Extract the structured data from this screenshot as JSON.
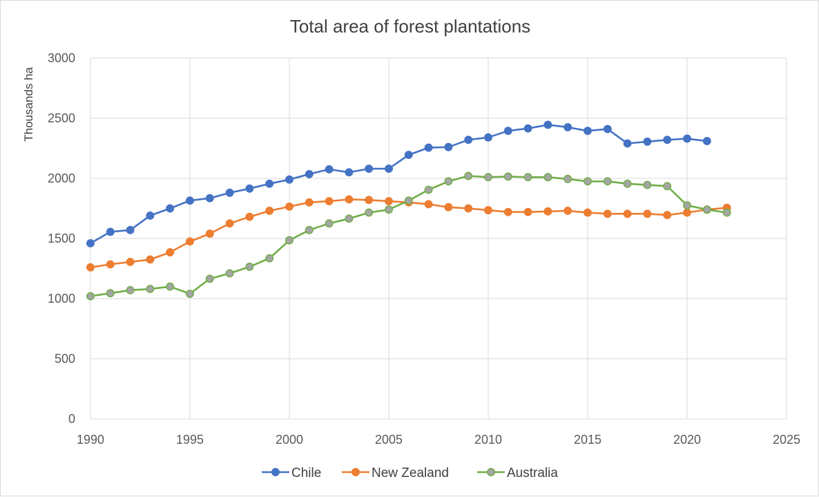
{
  "chart_data": {
    "type": "line",
    "title": "Total area of forest plantations",
    "ylabel": "Thousands ha",
    "xlabel": "",
    "xlim": [
      1990,
      2025
    ],
    "ylim": [
      0,
      3000
    ],
    "x_ticks": [
      "1990",
      "1995",
      "2000",
      "2005",
      "2010",
      "2015",
      "2020",
      "2025"
    ],
    "y_ticks": [
      "0",
      "500",
      "1000",
      "1500",
      "2000",
      "2500",
      "3000"
    ],
    "grid": true,
    "legend_position": "bottom",
    "series": [
      {
        "name": "Chile",
        "color": "#4472C4",
        "marker_fill": "#4472C4",
        "x": [
          1990,
          1991,
          1992,
          1993,
          1994,
          1995,
          1996,
          1997,
          1998,
          1999,
          2000,
          2001,
          2002,
          2003,
          2004,
          2005,
          2006,
          2007,
          2008,
          2009,
          2010,
          2011,
          2012,
          2013,
          2014,
          2015,
          2016,
          2017,
          2018,
          2019,
          2020,
          2021
        ],
        "values": [
          1460,
          1555,
          1570,
          1690,
          1750,
          1815,
          1835,
          1880,
          1915,
          1955,
          1990,
          2035,
          2075,
          2050,
          2080,
          2080,
          2195,
          2255,
          2260,
          2320,
          2340,
          2395,
          2415,
          2445,
          2425,
          2395,
          2410,
          2290,
          2305,
          2320,
          2330,
          2310
        ]
      },
      {
        "name": "New Zealand",
        "color": "#ED7D31",
        "marker_fill": "#ED7D31",
        "x": [
          1990,
          1991,
          1992,
          1993,
          1994,
          1995,
          1996,
          1997,
          1998,
          1999,
          2000,
          2001,
          2002,
          2003,
          2004,
          2005,
          2006,
          2007,
          2008,
          2009,
          2010,
          2011,
          2012,
          2013,
          2014,
          2015,
          2016,
          2017,
          2018,
          2019,
          2020,
          2021,
          2022
        ],
        "values": [
          1260,
          1285,
          1305,
          1325,
          1385,
          1475,
          1540,
          1625,
          1680,
          1730,
          1765,
          1800,
          1810,
          1825,
          1820,
          1810,
          1800,
          1785,
          1760,
          1750,
          1735,
          1720,
          1720,
          1725,
          1730,
          1715,
          1705,
          1705,
          1705,
          1695,
          1715,
          1740,
          1755
        ]
      },
      {
        "name": "Australia",
        "color": "#70AD47",
        "marker_fill": "#A5A5A5",
        "x": [
          1990,
          1991,
          1992,
          1993,
          1994,
          1995,
          1996,
          1997,
          1998,
          1999,
          2000,
          2001,
          2002,
          2003,
          2004,
          2005,
          2006,
          2007,
          2008,
          2009,
          2010,
          2011,
          2012,
          2013,
          2014,
          2015,
          2016,
          2017,
          2018,
          2019,
          2020,
          2021,
          2022
        ],
        "values": [
          1020,
          1045,
          1070,
          1080,
          1100,
          1040,
          1165,
          1210,
          1265,
          1335,
          1485,
          1570,
          1625,
          1665,
          1715,
          1740,
          1815,
          1905,
          1975,
          2020,
          2010,
          2015,
          2010,
          2010,
          1995,
          1975,
          1975,
          1955,
          1945,
          1935,
          1775,
          1740,
          1715
        ]
      }
    ]
  }
}
